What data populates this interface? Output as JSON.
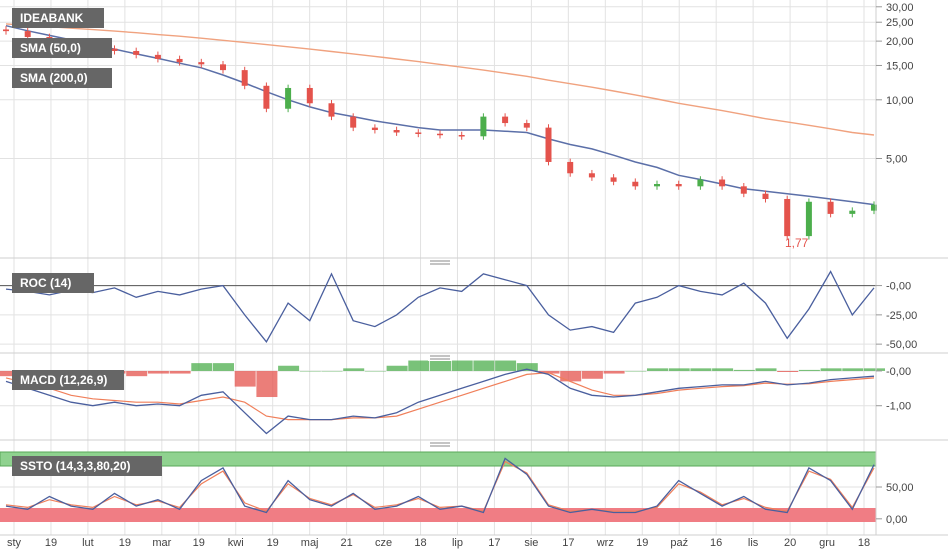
{
  "colors": {
    "up": "#4cae4c",
    "down": "#e4534c",
    "sma50": "#5b6fa8",
    "sma200": "#f0a27f",
    "osc_main": "#4a5f9e",
    "osc_signal": "#f07f5a",
    "grid": "#e2e2e2",
    "label_bg": "#666666",
    "green_zone": "#8fd28f",
    "red_zone": "#f07d84"
  },
  "chart_data": [
    {
      "id": "price",
      "type": "candlestick",
      "title": "IDEABANK",
      "scale": "log",
      "y_ticks": [
        "30,00",
        "25,00",
        "20,00",
        "15,00",
        "10,00",
        "5,00"
      ],
      "y_tick_values": [
        30,
        25,
        20,
        15,
        10,
        5
      ],
      "ylim": [
        1.6,
        31
      ],
      "legend": [
        "SMA (50,0)",
        "SMA (200,0)"
      ],
      "series": [
        {
          "name": "IDEABANK",
          "values": [
            22.5,
            21.0,
            19.5,
            18.8,
            18.3,
            17.8,
            17.0,
            16.2,
            15.6,
            15.2,
            14.2,
            11.8,
            9.0,
            11.5,
            9.6,
            8.2,
            7.2,
            7.0,
            6.8,
            6.7,
            6.6,
            6.5,
            8.2,
            7.6,
            7.2,
            4.8,
            4.2,
            4.0,
            3.8,
            3.6,
            3.7,
            3.6,
            3.9,
            3.6,
            3.3,
            3.1,
            2.0,
            3.0,
            2.6,
            2.7,
            2.9
          ]
        },
        {
          "name": "SMA (50,0)",
          "values": [
            24.0,
            22.6,
            21.4,
            20.3,
            19.2,
            18.2,
            17.2,
            16.3,
            15.4,
            14.6,
            13.4,
            12.2,
            11.0,
            10.0,
            9.2,
            8.6,
            8.2,
            7.8,
            7.5,
            7.2,
            7.0,
            7.0,
            7.0,
            6.9,
            6.8,
            6.3,
            5.9,
            5.6,
            5.2,
            4.8,
            4.5,
            4.1,
            3.9,
            3.7,
            3.5,
            3.4,
            3.3,
            3.2,
            3.1,
            3.0,
            2.9
          ]
        },
        {
          "name": "SMA (200,0)",
          "values": [
            24.5,
            24.1,
            23.7,
            23.3,
            22.9,
            22.5,
            22.1,
            21.6,
            21.2,
            20.7,
            20.2,
            19.7,
            19.2,
            18.7,
            18.2,
            17.7,
            17.2,
            16.7,
            16.2,
            15.7,
            15.2,
            14.7,
            14.2,
            13.7,
            13.2,
            12.6,
            12.1,
            11.6,
            11.1,
            10.6,
            10.1,
            9.6,
            9.2,
            8.8,
            8.4,
            8.0,
            7.7,
            7.4,
            7.1,
            6.8,
            6.6
          ]
        }
      ],
      "annotation": "1,77"
    },
    {
      "id": "roc",
      "type": "line",
      "title": "ROC (14)",
      "y_ticks": [
        "-0,00",
        "-25,00",
        "-50,00"
      ],
      "y_tick_values": [
        0,
        -25,
        -50
      ],
      "ylim": [
        -55,
        15
      ],
      "series": [
        {
          "name": "ROC (14)",
          "values": [
            -3,
            -5,
            -8,
            -4,
            -6,
            -2,
            -10,
            -5,
            -8,
            -3,
            0,
            -25,
            -48,
            -15,
            -30,
            10,
            -30,
            -35,
            -25,
            -10,
            -2,
            -5,
            10,
            5,
            0,
            -25,
            -38,
            -35,
            -40,
            -15,
            -10,
            0,
            -5,
            -8,
            2,
            -15,
            -45,
            -20,
            12,
            -25,
            -2
          ]
        }
      ]
    },
    {
      "id": "macd",
      "type": "line",
      "title": "MACD (12,26,9)",
      "y_ticks": [
        "-0,00",
        "-1,00"
      ],
      "y_tick_values": [
        0,
        -1
      ],
      "ylim": [
        -1.9,
        0.2
      ],
      "series": [
        {
          "name": "MACD (12,26,9)",
          "values": [
            -0.3,
            -0.5,
            -0.7,
            -0.9,
            -1.0,
            -0.9,
            -1.0,
            -0.95,
            -1.0,
            -0.7,
            -0.6,
            -1.2,
            -1.8,
            -1.3,
            -1.4,
            -1.4,
            -1.3,
            -1.35,
            -1.2,
            -0.9,
            -0.7,
            -0.5,
            -0.3,
            -0.1,
            0.05,
            -0.1,
            -0.5,
            -0.7,
            -0.75,
            -0.7,
            -0.6,
            -0.5,
            -0.45,
            -0.4,
            -0.4,
            -0.3,
            -0.4,
            -0.35,
            -0.25,
            -0.2,
            -0.15
          ]
        },
        {
          "name": "Signal",
          "values": [
            -0.2,
            -0.35,
            -0.5,
            -0.7,
            -0.8,
            -0.85,
            -0.9,
            -0.9,
            -0.95,
            -0.85,
            -0.75,
            -0.9,
            -1.3,
            -1.4,
            -1.4,
            -1.4,
            -1.35,
            -1.35,
            -1.3,
            -1.1,
            -0.9,
            -0.7,
            -0.5,
            -0.3,
            -0.1,
            -0.05,
            -0.3,
            -0.55,
            -0.7,
            -0.7,
            -0.65,
            -0.55,
            -0.5,
            -0.45,
            -0.42,
            -0.35,
            -0.38,
            -0.37,
            -0.3,
            -0.25,
            -0.2
          ]
        }
      ]
    },
    {
      "id": "ssto",
      "type": "line",
      "title": "SSTO (14,3,3,80,20)",
      "y_ticks": [
        "50,00",
        "0,00"
      ],
      "y_tick_values": [
        50,
        0
      ],
      "ylim": [
        -5,
        105
      ],
      "zones": [
        80,
        20
      ],
      "series": [
        {
          "name": "%K",
          "values": [
            20,
            15,
            35,
            20,
            15,
            40,
            20,
            30,
            15,
            60,
            80,
            20,
            10,
            60,
            30,
            20,
            40,
            15,
            20,
            35,
            15,
            20,
            10,
            95,
            70,
            20,
            10,
            15,
            10,
            10,
            20,
            60,
            40,
            20,
            35,
            15,
            10,
            80,
            60,
            15,
            85
          ]
        },
        {
          "name": "%D",
          "values": [
            22,
            18,
            30,
            22,
            18,
            35,
            22,
            28,
            18,
            55,
            75,
            25,
            12,
            55,
            32,
            22,
            38,
            18,
            22,
            32,
            18,
            20,
            12,
            90,
            72,
            22,
            12,
            15,
            12,
            12,
            18,
            55,
            42,
            22,
            32,
            18,
            12,
            75,
            62,
            18,
            80
          ]
        }
      ]
    }
  ],
  "x_axis": {
    "labels": [
      "sty",
      "19",
      "lut",
      "19",
      "mar",
      "19",
      "kwi",
      "19",
      "maj",
      "21",
      "cze",
      "18",
      "lip",
      "17",
      "sie",
      "17",
      "wrz",
      "19",
      "paź",
      "16",
      "lis",
      "20",
      "gru",
      "18"
    ]
  }
}
